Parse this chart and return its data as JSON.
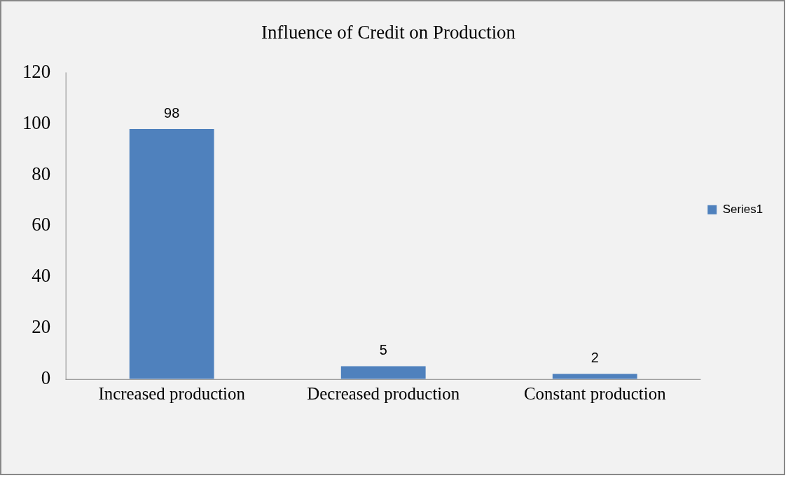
{
  "chart_data": {
    "type": "bar",
    "title": "Influence of Credit on Production",
    "categories": [
      "Increased production",
      "Decreased production",
      "Constant production"
    ],
    "series": [
      {
        "name": "Series1",
        "color": "#4f81bd",
        "values": [
          98,
          5,
          2
        ]
      }
    ],
    "ylim": [
      0,
      120
    ],
    "yticks": [
      0,
      20,
      40,
      60,
      80,
      100,
      120
    ],
    "grid": false,
    "legend": "right",
    "data_labels": true
  }
}
